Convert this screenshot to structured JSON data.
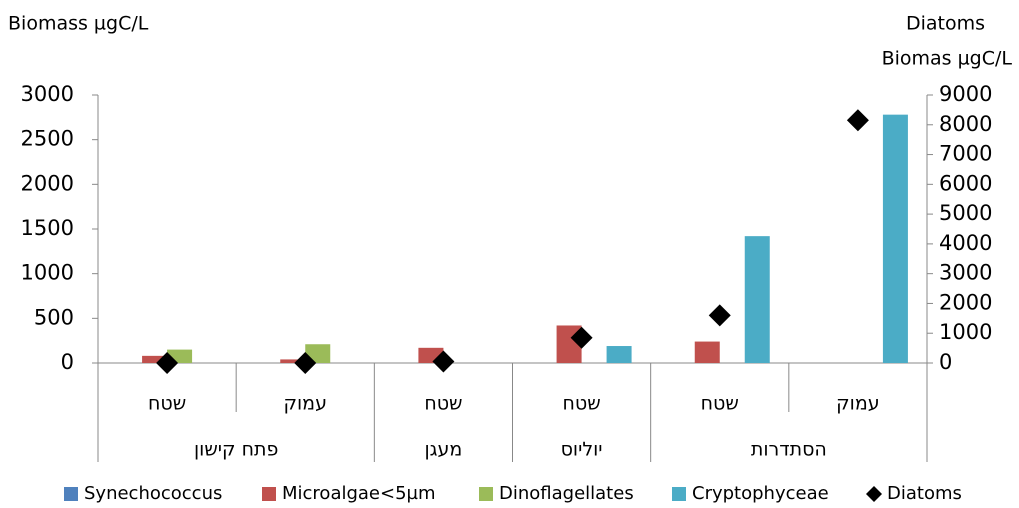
{
  "chart_data": {
    "type": "bar",
    "y_label": "Biomass µgC/L",
    "y2_label": [
      "Diatoms",
      "Biomas µgC/L"
    ],
    "groups": [
      {
        "name": "פתח קישון",
        "categories": [
          "שטח",
          "עמוק"
        ]
      },
      {
        "name": "מעגן",
        "categories": [
          "שטח"
        ]
      },
      {
        "name": "יוליוס",
        "categories": [
          "שטח"
        ]
      },
      {
        "name": "הסתדרות",
        "categories": [
          "שטח",
          "עמוק"
        ]
      }
    ],
    "series": [
      {
        "name": "Synechococcus",
        "color": "#4f81bd",
        "values": [
          0,
          0,
          0,
          0,
          0,
          0
        ]
      },
      {
        "name": "Microalgae<5µm",
        "color": "#c0504d",
        "values": [
          80,
          40,
          170,
          420,
          240,
          0
        ]
      },
      {
        "name": "Dinoflagellates",
        "color": "#9bbb59",
        "values": [
          150,
          210,
          0,
          0,
          0,
          0
        ]
      },
      {
        "name": "Cryptophyceae",
        "color": "#4bacc6",
        "values": [
          0,
          0,
          0,
          190,
          1420,
          2780
        ]
      },
      {
        "name": "Diatoms",
        "color": "#000000",
        "axis": "y2",
        "marker": "diamond",
        "values": [
          0,
          0,
          50,
          850,
          1600,
          8150
        ]
      }
    ],
    "ylim": [
      0,
      3000
    ],
    "yticks": [
      0,
      500,
      1000,
      1500,
      2000,
      2500,
      3000
    ],
    "y2lim": [
      0,
      9000
    ],
    "y2ticks": [
      0,
      1000,
      2000,
      3000,
      4000,
      5000,
      6000,
      7000,
      8000,
      9000
    ],
    "grid": false,
    "legend": "bottom"
  }
}
